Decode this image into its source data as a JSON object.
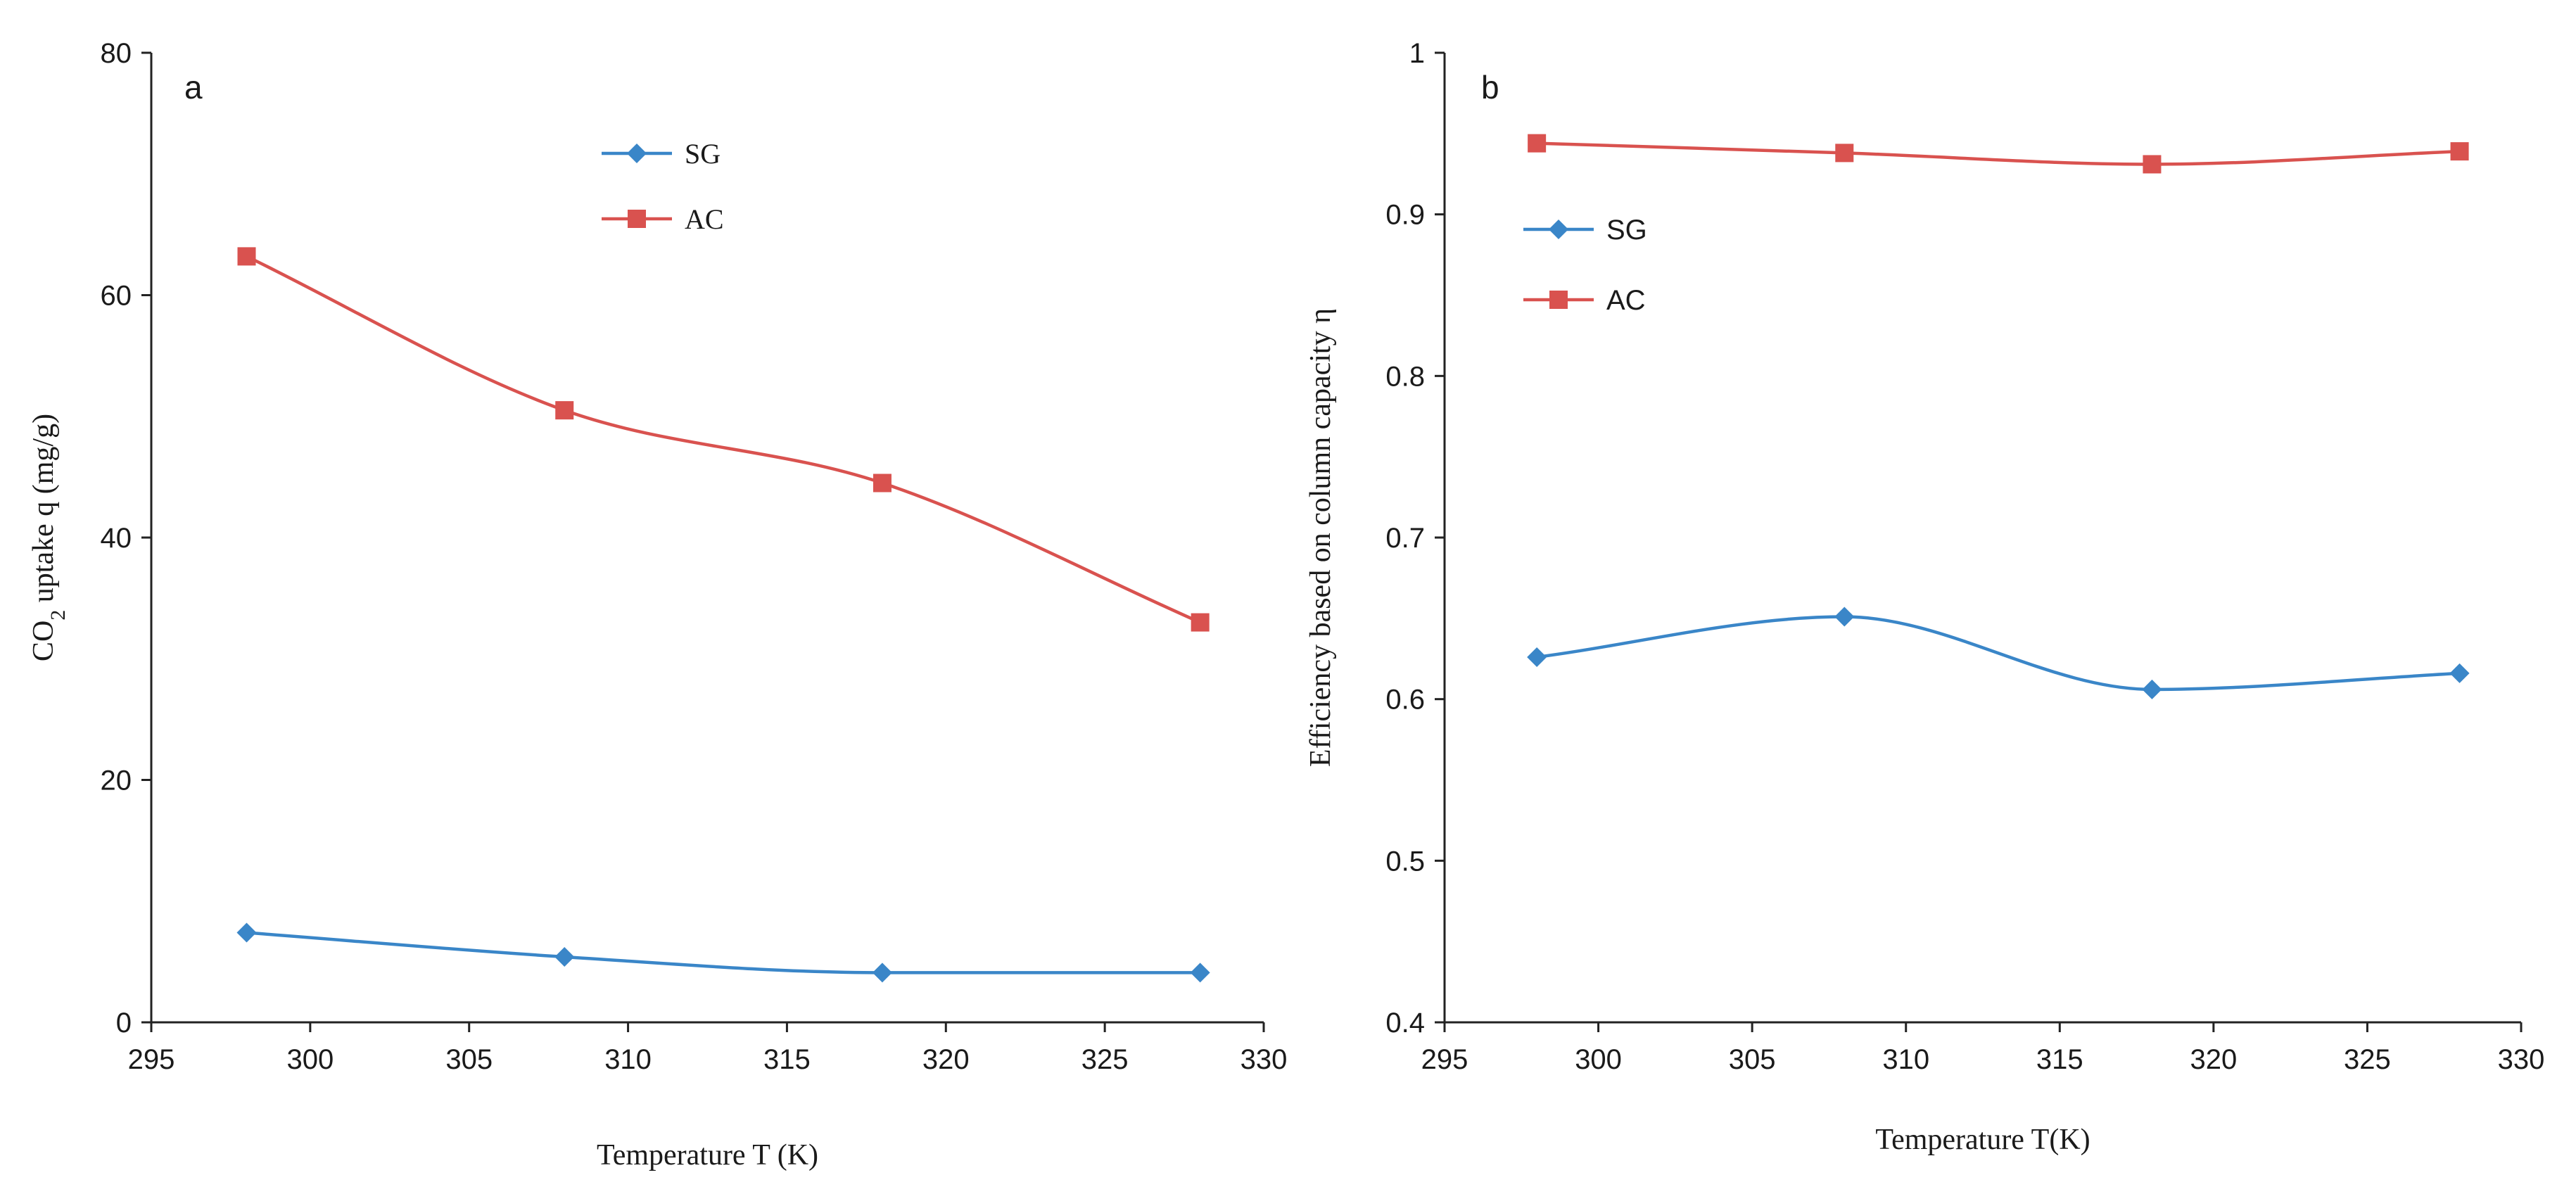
{
  "colors": {
    "SG": "#3a86c8",
    "AC": "#d9524f",
    "axis": "#222222"
  },
  "chart_data": [
    {
      "type": "line",
      "panel_label": "a",
      "xlabel": "Temperature T (K)",
      "ylabel": {
        "pre": "CO",
        "sub": "2",
        "post": " uptake q (mg/g)"
      },
      "xlim": [
        295,
        330
      ],
      "ylim": [
        0,
        80
      ],
      "xticks": [
        "295",
        "300",
        "305",
        "310",
        "315",
        "320",
        "325",
        "330"
      ],
      "yticks": [
        "0",
        "20",
        "40",
        "60",
        "80"
      ],
      "x": [
        298,
        308,
        318,
        328
      ],
      "series": [
        {
          "name": "SG",
          "marker": "diamond",
          "values": [
            7.4,
            5.4,
            4.1,
            4.1
          ]
        },
        {
          "name": "AC",
          "marker": "square",
          "values": [
            63.2,
            50.5,
            44.5,
            33.0
          ]
        }
      ],
      "legend": [
        "SG",
        "AC"
      ],
      "legend_position": "top-center"
    },
    {
      "type": "line",
      "panel_label": "b",
      "xlabel": "Temperature T(K)",
      "ylabel": {
        "pre": "Efficiency based on column capacity  η",
        "sub": "",
        "post": ""
      },
      "xlim": [
        295,
        330
      ],
      "ylim": [
        0.4,
        1.0
      ],
      "xticks": [
        "295",
        "300",
        "305",
        "310",
        "315",
        "320",
        "325",
        "330"
      ],
      "yticks": [
        "0.4",
        "0.5",
        "0.6",
        "0.7",
        "0.8",
        "0.9",
        "1"
      ],
      "x": [
        298,
        308,
        318,
        328
      ],
      "series": [
        {
          "name": "SG",
          "marker": "diamond",
          "values": [
            0.626,
            0.651,
            0.606,
            0.616
          ]
        },
        {
          "name": "AC",
          "marker": "square",
          "values": [
            0.944,
            0.938,
            0.931,
            0.939
          ]
        }
      ],
      "legend": [
        "SG",
        "AC"
      ],
      "legend_position": "top-left"
    }
  ]
}
